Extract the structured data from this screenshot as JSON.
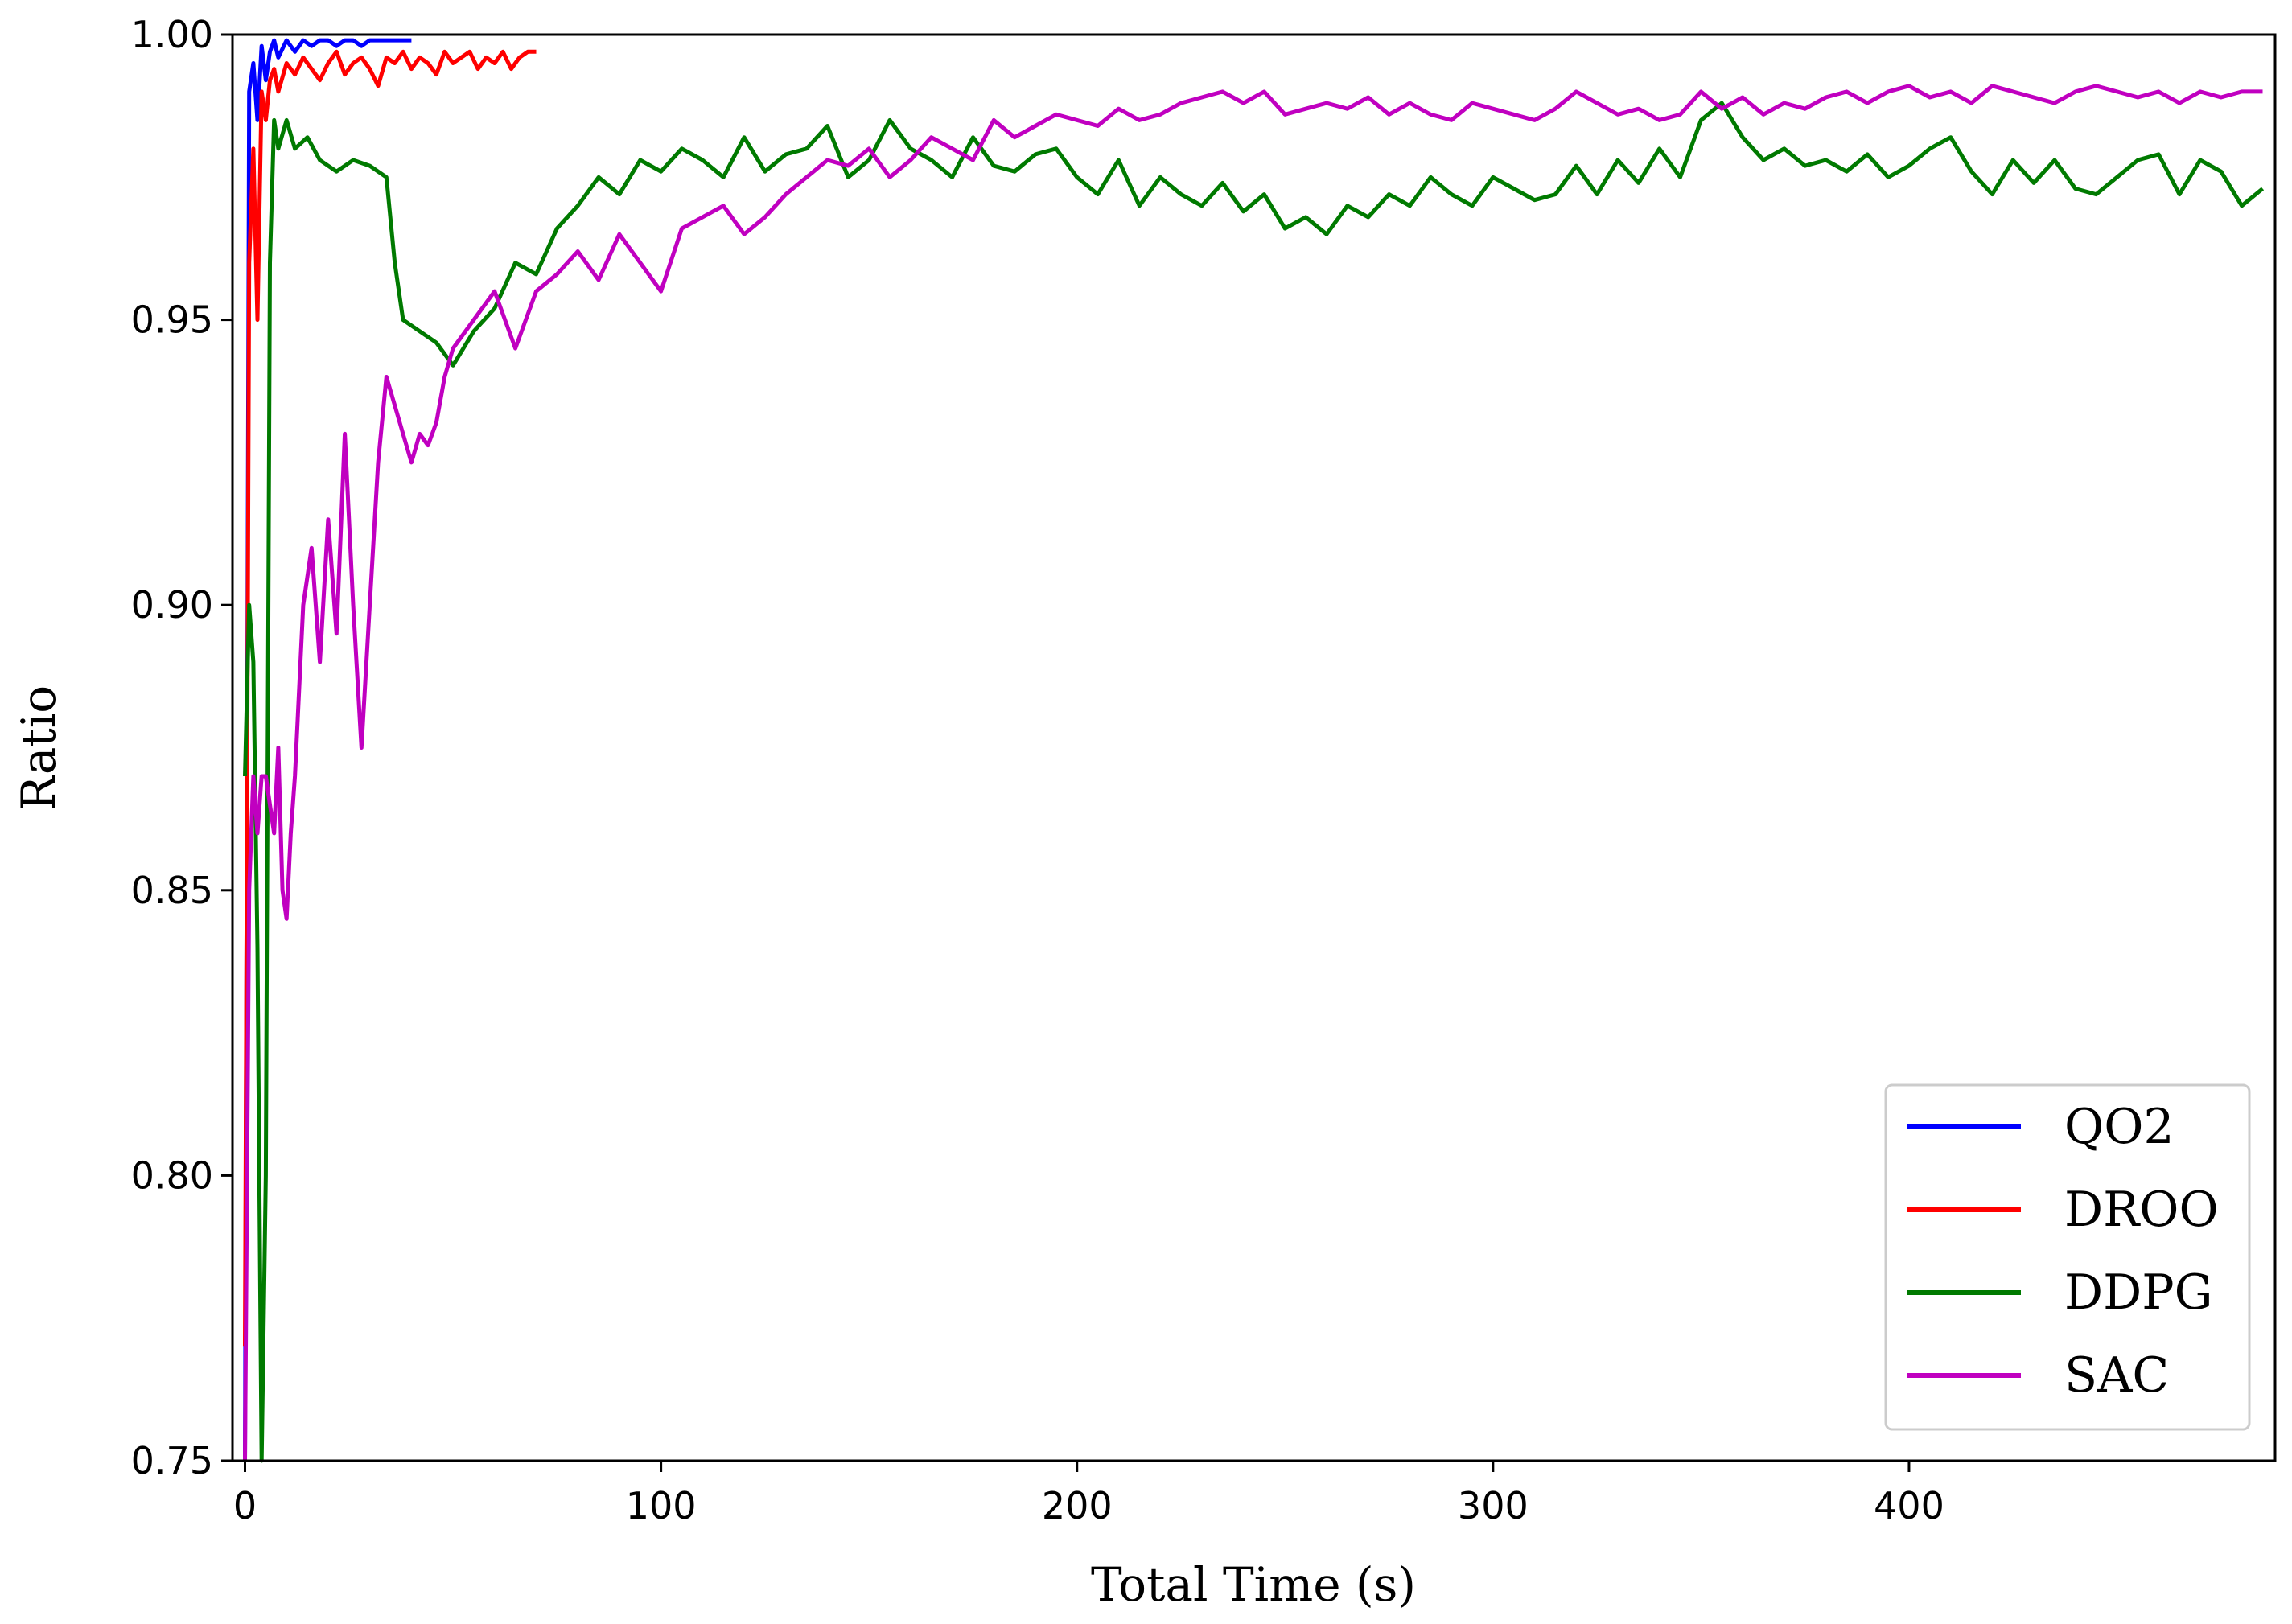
{
  "chart_data": {
    "type": "line",
    "title": "",
    "xlabel": "Total Time (s)",
    "ylabel": "Ratio",
    "xlim": [
      -3,
      488
    ],
    "ylim": [
      0.75,
      1.0
    ],
    "xticks": [
      0,
      100,
      200,
      300,
      400
    ],
    "xtick_labels": [
      "0",
      "100",
      "200",
      "300",
      "400"
    ],
    "yticks": [
      0.75,
      0.8,
      0.85,
      0.9,
      0.95,
      1.0
    ],
    "ytick_labels": [
      "0.75",
      "0.80",
      "0.85",
      "0.90",
      "0.95",
      "1.00"
    ],
    "grid": false,
    "legend_position": "lower-right",
    "series": [
      {
        "name": "QO2",
        "color": "#0000ff",
        "x": [
          0,
          1,
          2,
          3,
          4,
          5,
          6,
          7,
          8,
          10,
          12,
          14,
          16,
          18,
          20,
          22,
          24,
          26,
          28,
          30,
          32,
          34,
          36,
          38,
          40
        ],
        "y": [
          0.75,
          0.99,
          0.995,
          0.985,
          0.998,
          0.992,
          0.997,
          0.999,
          0.996,
          0.999,
          0.997,
          0.999,
          0.998,
          0.999,
          0.999,
          0.998,
          0.999,
          0.999,
          0.998,
          0.999,
          0.999,
          0.999,
          0.999,
          0.999,
          0.999
        ]
      },
      {
        "name": "DROO",
        "color": "#ff0000",
        "x": [
          0,
          1,
          2,
          3,
          4,
          5,
          6,
          7,
          8,
          10,
          12,
          14,
          16,
          18,
          20,
          22,
          24,
          26,
          28,
          30,
          32,
          34,
          36,
          38,
          40,
          42,
          44,
          46,
          48,
          50,
          52,
          54,
          56,
          58,
          60,
          62,
          64,
          66,
          68,
          70
        ],
        "y": [
          0.77,
          0.96,
          0.98,
          0.95,
          0.99,
          0.985,
          0.992,
          0.994,
          0.99,
          0.995,
          0.993,
          0.996,
          0.994,
          0.992,
          0.995,
          0.997,
          0.993,
          0.995,
          0.996,
          0.994,
          0.991,
          0.996,
          0.995,
          0.997,
          0.994,
          0.996,
          0.995,
          0.993,
          0.997,
          0.995,
          0.996,
          0.997,
          0.994,
          0.996,
          0.995,
          0.997,
          0.994,
          0.996,
          0.997,
          0.997
        ]
      },
      {
        "name": "DDPG",
        "color": "#007a00",
        "x": [
          0,
          1,
          2,
          3,
          4,
          5,
          6,
          7,
          8,
          10,
          12,
          15,
          18,
          22,
          26,
          30,
          34,
          36,
          38,
          42,
          46,
          50,
          55,
          60,
          65,
          70,
          75,
          80,
          85,
          90,
          95,
          100,
          105,
          110,
          115,
          120,
          125,
          130,
          135,
          140,
          145,
          150,
          155,
          160,
          165,
          170,
          175,
          180,
          185,
          190,
          195,
          200,
          205,
          210,
          215,
          220,
          225,
          230,
          235,
          240,
          245,
          250,
          255,
          260,
          265,
          270,
          275,
          280,
          285,
          290,
          295,
          300,
          305,
          310,
          315,
          320,
          325,
          330,
          335,
          340,
          345,
          350,
          355,
          360,
          365,
          370,
          375,
          380,
          385,
          390,
          395,
          400,
          405,
          410,
          415,
          420,
          425,
          430,
          435,
          440,
          445,
          450,
          455,
          460,
          465,
          470,
          475,
          480,
          485
        ],
        "y": [
          0.87,
          0.9,
          0.89,
          0.84,
          0.75,
          0.8,
          0.96,
          0.985,
          0.98,
          0.985,
          0.98,
          0.982,
          0.978,
          0.976,
          0.978,
          0.977,
          0.975,
          0.96,
          0.95,
          0.948,
          0.946,
          0.942,
          0.948,
          0.952,
          0.96,
          0.958,
          0.966,
          0.97,
          0.975,
          0.972,
          0.978,
          0.976,
          0.98,
          0.978,
          0.975,
          0.982,
          0.976,
          0.979,
          0.98,
          0.984,
          0.975,
          0.978,
          0.985,
          0.98,
          0.978,
          0.975,
          0.982,
          0.977,
          0.976,
          0.979,
          0.98,
          0.975,
          0.972,
          0.978,
          0.97,
          0.975,
          0.972,
          0.97,
          0.974,
          0.969,
          0.972,
          0.966,
          0.968,
          0.965,
          0.97,
          0.968,
          0.972,
          0.97,
          0.975,
          0.972,
          0.97,
          0.975,
          0.973,
          0.971,
          0.972,
          0.977,
          0.972,
          0.978,
          0.974,
          0.98,
          0.975,
          0.985,
          0.988,
          0.982,
          0.978,
          0.98,
          0.977,
          0.978,
          0.976,
          0.979,
          0.975,
          0.977,
          0.98,
          0.982,
          0.976,
          0.972,
          0.978,
          0.974,
          0.978,
          0.973,
          0.972,
          0.975,
          0.978,
          0.979,
          0.972,
          0.978,
          0.976,
          0.97,
          0.973
        ]
      },
      {
        "name": "SAC",
        "color": "#c000c0",
        "x": [
          0,
          1,
          2,
          3,
          4,
          5,
          6,
          7,
          8,
          9,
          10,
          11,
          12,
          14,
          16,
          18,
          20,
          22,
          24,
          26,
          28,
          30,
          32,
          34,
          36,
          38,
          40,
          42,
          44,
          46,
          48,
          50,
          55,
          60,
          65,
          70,
          75,
          80,
          85,
          90,
          95,
          100,
          105,
          110,
          115,
          120,
          125,
          130,
          135,
          140,
          145,
          150,
          155,
          160,
          165,
          170,
          175,
          180,
          185,
          190,
          195,
          200,
          205,
          210,
          215,
          220,
          225,
          230,
          235,
          240,
          245,
          250,
          255,
          260,
          265,
          270,
          275,
          280,
          285,
          290,
          295,
          300,
          305,
          310,
          315,
          320,
          325,
          330,
          335,
          340,
          345,
          350,
          355,
          360,
          365,
          370,
          375,
          380,
          385,
          390,
          395,
          400,
          405,
          410,
          415,
          420,
          425,
          430,
          435,
          440,
          445,
          450,
          455,
          460,
          465,
          470,
          475,
          480,
          485
        ],
        "y": [
          0.75,
          0.85,
          0.87,
          0.86,
          0.87,
          0.87,
          0.865,
          0.86,
          0.875,
          0.85,
          0.845,
          0.86,
          0.87,
          0.9,
          0.91,
          0.89,
          0.915,
          0.895,
          0.93,
          0.9,
          0.875,
          0.9,
          0.925,
          0.94,
          0.935,
          0.93,
          0.925,
          0.93,
          0.928,
          0.932,
          0.94,
          0.945,
          0.95,
          0.955,
          0.945,
          0.955,
          0.958,
          0.962,
          0.957,
          0.965,
          0.96,
          0.955,
          0.966,
          0.968,
          0.97,
          0.965,
          0.968,
          0.972,
          0.975,
          0.978,
          0.977,
          0.98,
          0.975,
          0.978,
          0.982,
          0.98,
          0.978,
          0.985,
          0.982,
          0.984,
          0.986,
          0.985,
          0.984,
          0.987,
          0.985,
          0.986,
          0.988,
          0.989,
          0.99,
          0.988,
          0.99,
          0.986,
          0.987,
          0.988,
          0.987,
          0.989,
          0.986,
          0.988,
          0.986,
          0.985,
          0.988,
          0.987,
          0.986,
          0.985,
          0.987,
          0.99,
          0.988,
          0.986,
          0.987,
          0.985,
          0.986,
          0.99,
          0.987,
          0.989,
          0.986,
          0.988,
          0.987,
          0.989,
          0.99,
          0.988,
          0.99,
          0.991,
          0.989,
          0.99,
          0.988,
          0.991,
          0.99,
          0.989,
          0.988,
          0.99,
          0.991,
          0.99,
          0.989,
          0.99,
          0.988,
          0.99,
          0.989,
          0.99,
          0.99
        ]
      }
    ]
  }
}
